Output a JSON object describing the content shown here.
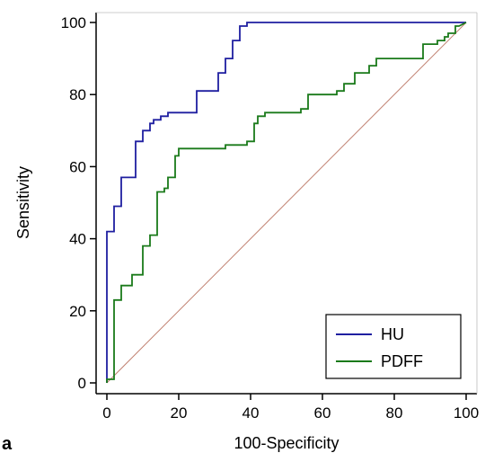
{
  "panel_label": "a",
  "chart_data": {
    "type": "line",
    "xlabel": "100-Specificity",
    "ylabel": "Sensitivity",
    "xlim": [
      0,
      100
    ],
    "ylim": [
      0,
      100
    ],
    "x_ticks": [
      0,
      20,
      40,
      60,
      80,
      100
    ],
    "y_ticks": [
      0,
      20,
      40,
      60,
      80,
      100
    ],
    "grid": false,
    "legend_position": "bottom-right",
    "colors": {
      "HU": "#1f1fa0",
      "PDFF": "#1a7a1a",
      "reference": "#c08070"
    },
    "series": [
      {
        "name": "HU",
        "x": [
          0,
          0,
          1,
          2,
          2,
          4,
          4,
          6,
          8,
          8,
          10,
          10,
          12,
          12,
          13,
          13,
          15,
          15,
          17,
          17,
          19,
          19,
          25,
          25,
          31,
          31,
          33,
          33,
          35,
          35,
          37,
          37,
          39,
          39,
          100
        ],
        "y": [
          0,
          42,
          42,
          42,
          49,
          49,
          57,
          57,
          57,
          67,
          67,
          70,
          70,
          72,
          72,
          73,
          73,
          74,
          74,
          75,
          75,
          75,
          75,
          81,
          81,
          86,
          86,
          90,
          90,
          95,
          95,
          99,
          99,
          100,
          100
        ]
      },
      {
        "name": "PDFF",
        "x": [
          0,
          0,
          2,
          2,
          4,
          4,
          5,
          5,
          7,
          7,
          9,
          9,
          10,
          10,
          12,
          12,
          14,
          14,
          16,
          16,
          17,
          17,
          19,
          19,
          20,
          20,
          33,
          33,
          35,
          35,
          39,
          39,
          41,
          41,
          42,
          42,
          44,
          44,
          54,
          54,
          56,
          56,
          64,
          64,
          66,
          66,
          69,
          69,
          73,
          73,
          75,
          75,
          88,
          88,
          92,
          92,
          94,
          94,
          95,
          95,
          97,
          97,
          98,
          98,
          100
        ],
        "y": [
          0,
          1,
          1,
          23,
          23,
          27,
          27,
          27,
          27,
          30,
          30,
          30,
          30,
          38,
          38,
          41,
          41,
          53,
          53,
          54,
          54,
          57,
          57,
          63,
          63,
          65,
          65,
          66,
          66,
          66,
          66,
          67,
          67,
          72,
          72,
          74,
          74,
          75,
          75,
          76,
          76,
          80,
          80,
          81,
          81,
          83,
          83,
          86,
          86,
          88,
          88,
          90,
          90,
          94,
          94,
          95,
          95,
          96,
          96,
          97,
          97,
          99,
          99,
          99,
          100
        ]
      }
    ],
    "reference_line": {
      "x": [
        0,
        100
      ],
      "y": [
        0,
        100
      ]
    }
  }
}
